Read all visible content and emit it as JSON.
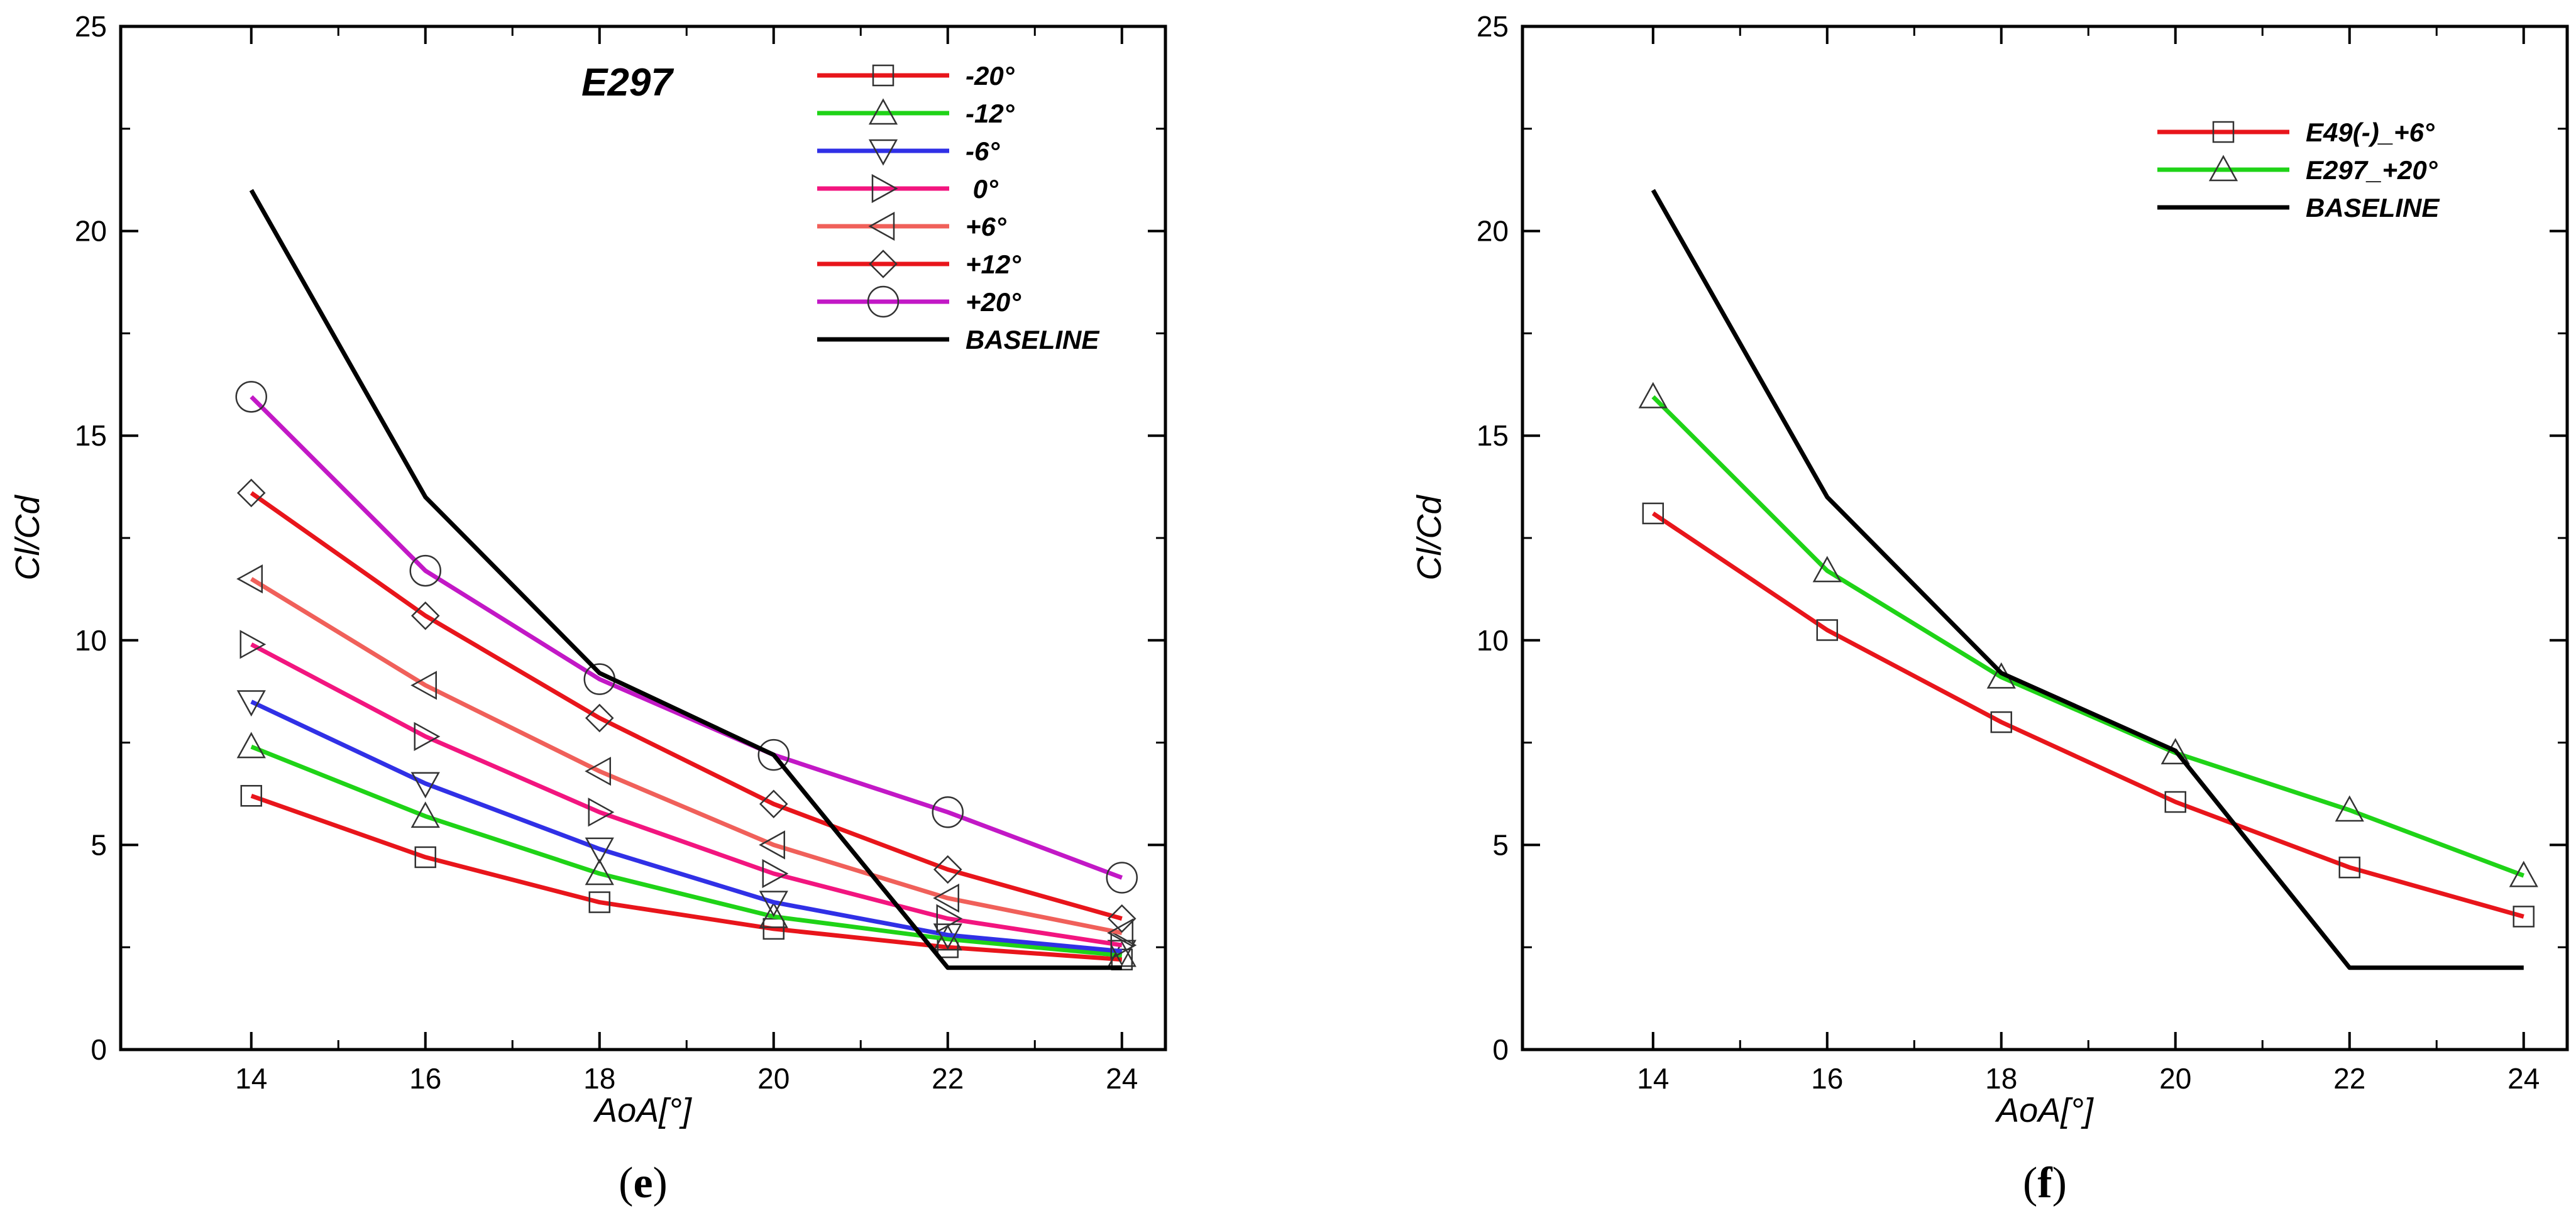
{
  "chart_data": [
    {
      "type": "line",
      "panel": "e",
      "panel_label": {
        "open": "(",
        "letter": "e",
        "close": ")"
      },
      "annotation": "E297",
      "xlabel": "AoA[°]",
      "ylabel": "Cl/Cd",
      "xlim": [
        12.5,
        24.5
      ],
      "ylim": [
        0,
        25
      ],
      "xticks": [
        14,
        16,
        18,
        20,
        22,
        24
      ],
      "yticks": [
        0,
        5,
        10,
        15,
        20,
        25
      ],
      "x": [
        14,
        16,
        18,
        20,
        22,
        24
      ],
      "series": [
        {
          "name": "-20°",
          "color": "#e8151b",
          "marker": "square",
          "values": [
            6.2,
            4.7,
            3.6,
            2.95,
            2.5,
            2.2
          ]
        },
        {
          "name": "-12°",
          "color": "#1fd317",
          "marker": "triangle-up",
          "values": [
            7.4,
            5.7,
            4.3,
            3.25,
            2.7,
            2.3
          ]
        },
        {
          "name": "-6°",
          "color": "#3030e6",
          "marker": "triangle-down",
          "values": [
            8.5,
            6.5,
            4.9,
            3.6,
            2.8,
            2.4
          ]
        },
        {
          "name": " 0°",
          "color": "#f2157f",
          "marker": "triangle-right",
          "values": [
            9.9,
            7.65,
            5.8,
            4.3,
            3.2,
            2.55
          ]
        },
        {
          "name": "+6°",
          "color": "#f0605a",
          "marker": "triangle-left",
          "values": [
            11.5,
            8.9,
            6.8,
            5.0,
            3.7,
            2.85
          ]
        },
        {
          "name": "+12°",
          "color": "#e8151b",
          "marker": "diamond",
          "values": [
            13.6,
            10.6,
            8.1,
            6.0,
            4.4,
            3.2
          ]
        },
        {
          "name": "+20°",
          "color": "#c218c6",
          "marker": "circle",
          "values": [
            15.95,
            11.7,
            9.05,
            7.2,
            5.8,
            4.2
          ]
        },
        {
          "name": "BASELINE",
          "color": "#000000",
          "marker": "none",
          "values": [
            21.0,
            13.5,
            9.2,
            7.2,
            2.0,
            2.0
          ]
        }
      ]
    },
    {
      "type": "line",
      "panel": "f",
      "panel_label": {
        "open": "(",
        "letter": "f",
        "close": ")"
      },
      "xlabel": "AoA[°]",
      "ylabel": "Cl/Cd",
      "xlim": [
        12.5,
        24.5
      ],
      "ylim": [
        0,
        25
      ],
      "xticks": [
        14,
        16,
        18,
        20,
        22,
        24
      ],
      "yticks": [
        0,
        5,
        10,
        15,
        20,
        25
      ],
      "x": [
        14,
        16,
        18,
        20,
        22,
        24
      ],
      "series": [
        {
          "name": "E49(-)_+6°",
          "color": "#e8151b",
          "marker": "square",
          "values": [
            13.1,
            10.25,
            8.0,
            6.05,
            4.45,
            3.25
          ]
        },
        {
          "name": "E297_+20°",
          "color": "#1fd317",
          "marker": "triangle-up",
          "values": [
            15.95,
            11.7,
            9.1,
            7.25,
            5.85,
            4.25
          ]
        },
        {
          "name": "BASELINE",
          "color": "#000000",
          "marker": "none",
          "values": [
            21.0,
            13.5,
            9.2,
            7.3,
            2.0,
            2.0
          ]
        }
      ]
    }
  ]
}
